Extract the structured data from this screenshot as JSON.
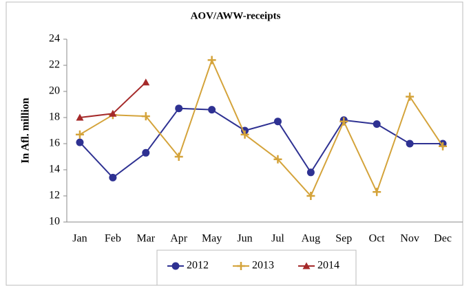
{
  "chart_data": {
    "type": "line",
    "title": "AOV/AWW-receipts",
    "y_label": "In Afl. million",
    "categories": [
      "Jan",
      "Feb",
      "Mar",
      "Apr",
      "May",
      "Jun",
      "Jul",
      "Aug",
      "Sep",
      "Oct",
      "Nov",
      "Dec"
    ],
    "series": [
      {
        "name": "2012",
        "color": "#2e3192",
        "marker": "circle",
        "values": [
          16.1,
          13.4,
          15.3,
          18.7,
          18.6,
          17.0,
          17.7,
          13.8,
          17.8,
          17.5,
          16.0,
          16.0
        ]
      },
      {
        "name": "2013",
        "color": "#d4a33a",
        "marker": "plus",
        "values": [
          16.7,
          18.2,
          18.1,
          15.0,
          22.4,
          16.7,
          14.8,
          12.0,
          17.7,
          12.3,
          19.6,
          15.8
        ]
      },
      {
        "name": "2014",
        "color": "#a52a2a",
        "marker": "triangle",
        "values": [
          18.0,
          18.3,
          20.7,
          null,
          null,
          null,
          null,
          null,
          null,
          null,
          null,
          null
        ]
      }
    ],
    "ylim": [
      10,
      24
    ],
    "yticks": [
      10,
      12,
      14,
      16,
      18,
      20,
      22,
      24
    ],
    "grid": false,
    "legend": "bottom"
  }
}
